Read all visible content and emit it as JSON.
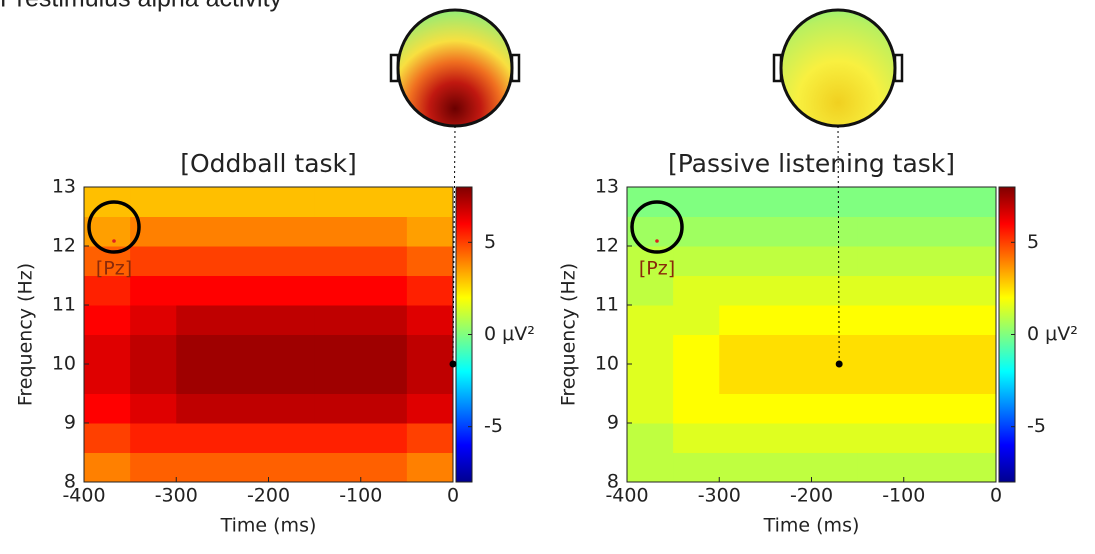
{
  "title": "Prestimulus alpha activity",
  "chart_data": [
    {
      "type": "heatmap",
      "title": "[Oddball task]",
      "xlabel": "Time (ms)",
      "ylabel": "Frequency (Hz)",
      "electrode": "[Pz]",
      "colormap": "jet",
      "x": [
        -375,
        -325,
        -275,
        -225,
        -175,
        -125,
        -75,
        -25
      ],
      "y": [
        8.25,
        8.75,
        9.25,
        9.75,
        10.25,
        10.75,
        11.25,
        11.75,
        12.25,
        12.75
      ],
      "values": [
        [
          4,
          4.5,
          4.5,
          4.5,
          4.5,
          4.5,
          4.5,
          4
        ],
        [
          5,
          5.5,
          5.5,
          5.5,
          5.5,
          5.5,
          5.5,
          5
        ],
        [
          6,
          6.5,
          7,
          7,
          7,
          7,
          7,
          6.5
        ],
        [
          6.5,
          7,
          7.5,
          7.5,
          7.5,
          7.5,
          7.5,
          7
        ],
        [
          6.5,
          7,
          7.5,
          7.5,
          7.5,
          7.5,
          7.5,
          7
        ],
        [
          6,
          6.5,
          7,
          7,
          7,
          7,
          7,
          6.5
        ],
        [
          5.5,
          6,
          6,
          6,
          6,
          6,
          6,
          5.5
        ],
        [
          4.5,
          5,
          5,
          5,
          5,
          5,
          5,
          4.5
        ],
        [
          3.5,
          4,
          4,
          4,
          4,
          4,
          4,
          3.5
        ],
        [
          3,
          3,
          3,
          3,
          3,
          3,
          3,
          3
        ]
      ],
      "xlim": [
        -400,
        0
      ],
      "ylim": [
        8,
        13
      ],
      "xticks": [
        -400,
        -300,
        -200,
        -100,
        0
      ],
      "yticks": [
        8,
        9,
        10,
        11,
        12,
        13
      ],
      "clim": [
        -8,
        8
      ],
      "cticks": [
        -5,
        {
          "value": 0,
          "label": "0 μV²"
        },
        5
      ],
      "marker_x": 0,
      "marker_y": 10
    },
    {
      "type": "heatmap",
      "title": "[Passive listening task]",
      "xlabel": "Time (ms)",
      "ylabel": "Frequency (Hz)",
      "electrode": "[Pz]",
      "colormap": "jet",
      "x": [
        -375,
        -325,
        -275,
        -225,
        -175,
        -125,
        -75,
        -25
      ],
      "y": [
        8.25,
        8.75,
        9.25,
        9.75,
        10.25,
        10.75,
        11.25,
        11.75,
        12.25,
        12.75
      ],
      "values": [
        [
          1,
          1,
          1,
          1,
          1,
          1,
          1,
          1
        ],
        [
          1,
          1.5,
          1.5,
          1.5,
          1.5,
          1.5,
          1.5,
          1.5
        ],
        [
          1.5,
          2,
          2,
          2,
          2,
          2,
          2,
          2
        ],
        [
          1.5,
          2,
          2.5,
          2.5,
          2.5,
          2.5,
          2.5,
          2.5
        ],
        [
          1.5,
          2,
          2.5,
          2.5,
          2.5,
          2.5,
          2.5,
          2.5
        ],
        [
          1.5,
          1.5,
          2,
          2,
          2,
          2,
          2,
          2
        ],
        [
          1,
          1.5,
          1.5,
          1.5,
          1.5,
          1.5,
          1.5,
          1.5
        ],
        [
          1,
          1,
          1,
          1,
          1,
          1,
          1,
          1
        ],
        [
          0.5,
          0.5,
          0.5,
          0.5,
          0.5,
          0.5,
          0.5,
          0.5
        ],
        [
          0,
          0,
          0,
          0,
          0,
          0,
          0,
          0
        ]
      ],
      "xlim": [
        -400,
        0
      ],
      "ylim": [
        8,
        13
      ],
      "xticks": [
        -400,
        -300,
        -200,
        -100,
        0
      ],
      "yticks": [
        8,
        9,
        10,
        11,
        12,
        13
      ],
      "clim": [
        -8,
        8
      ],
      "cticks": [
        -5,
        {
          "value": 0,
          "label": "0 μV²"
        },
        5
      ],
      "marker_x": -170,
      "marker_y": 10
    }
  ]
}
